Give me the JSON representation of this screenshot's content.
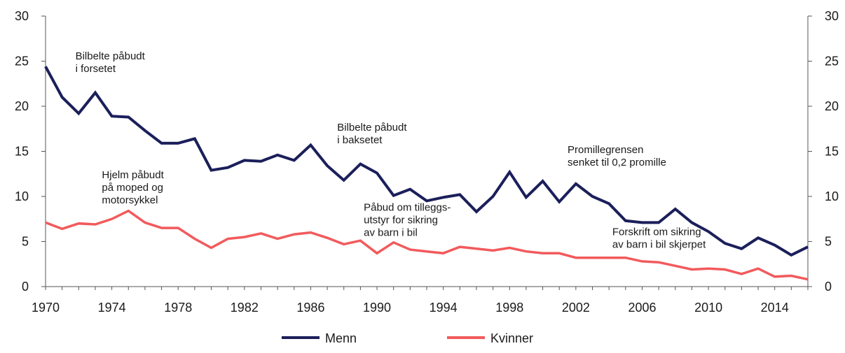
{
  "chart_data": {
    "type": "line",
    "x": [
      1970,
      1971,
      1972,
      1973,
      1974,
      1975,
      1976,
      1977,
      1978,
      1979,
      1980,
      1981,
      1982,
      1983,
      1984,
      1985,
      1986,
      1987,
      1988,
      1989,
      1990,
      1991,
      1992,
      1993,
      1994,
      1995,
      1996,
      1997,
      1998,
      1999,
      2000,
      2001,
      2002,
      2003,
      2004,
      2005,
      2006,
      2007,
      2008,
      2009,
      2010,
      2011,
      2012,
      2013,
      2014,
      2015,
      2016
    ],
    "xticks": [
      "1970",
      "1974",
      "1978",
      "1982",
      "1986",
      "1990",
      "1994",
      "1998",
      "2002",
      "2006",
      "2010",
      "2014"
    ],
    "xtick_values": [
      1970,
      1974,
      1978,
      1982,
      1986,
      1990,
      1994,
      1998,
      2002,
      2006,
      2010,
      2014
    ],
    "yticks": [
      "0",
      "5",
      "10",
      "15",
      "20",
      "25",
      "30"
    ],
    "ytick_values": [
      0,
      5,
      10,
      15,
      20,
      25,
      30
    ],
    "xlim": [
      1970,
      2016
    ],
    "ylim": [
      0,
      30
    ],
    "grid": false,
    "secondary_y_axis": true,
    "legend_position": "bottom",
    "series": [
      {
        "name": "Menn",
        "color": "#1b1f5a",
        "values": [
          24.4,
          21.0,
          19.2,
          21.5,
          18.9,
          18.8,
          17.3,
          15.9,
          15.9,
          16.4,
          12.9,
          13.2,
          14.0,
          13.9,
          14.6,
          14.0,
          15.7,
          13.4,
          11.8,
          13.6,
          12.6,
          10.1,
          10.8,
          9.5,
          9.9,
          10.2,
          8.3,
          10.0,
          12.7,
          9.9,
          11.7,
          9.4,
          11.4,
          10.0,
          9.2,
          7.3,
          7.1,
          7.1,
          8.6,
          7.1,
          6.1,
          4.8,
          4.2,
          5.4,
          4.6,
          3.5,
          4.4
        ]
      },
      {
        "name": "Kvinner",
        "color": "#f25a5c",
        "values": [
          7.1,
          6.4,
          7.0,
          6.9,
          7.5,
          8.4,
          7.1,
          6.5,
          6.5,
          5.3,
          4.3,
          5.3,
          5.5,
          5.9,
          5.3,
          5.8,
          6.0,
          5.4,
          4.7,
          5.1,
          3.7,
          4.9,
          4.1,
          3.9,
          3.7,
          4.4,
          4.2,
          4.0,
          4.3,
          3.9,
          3.7,
          3.7,
          3.2,
          3.2,
          3.2,
          3.2,
          2.8,
          2.7,
          2.3,
          1.9,
          2.0,
          1.9,
          1.4,
          2.0,
          1.1,
          1.2,
          0.8
        ]
      }
    ],
    "annotations": [
      {
        "lines": [
          "Bilbelte påbudt",
          "i forsetet"
        ],
        "x": 1971.8,
        "y": 25.2
      },
      {
        "lines": [
          "Hjelm påbudt",
          "på moped og",
          "motorsykkel"
        ],
        "x": 1973.4,
        "y": 12.0
      },
      {
        "lines": [
          "Bilbelte påbudt",
          "i baksetet"
        ],
        "x": 1987.6,
        "y": 17.3
      },
      {
        "lines": [
          "Påbud om tilleggs-",
          "utstyr for sikring",
          "av barn i bil"
        ],
        "x": 1989.2,
        "y": 8.4
      },
      {
        "lines": [
          "Promillegrensen",
          "senket til 0,2 promille"
        ],
        "x": 2001.5,
        "y": 14.8
      },
      {
        "lines": [
          "Forskrift om sikring",
          "av barn i bil skjerpet"
        ],
        "x": 2004.2,
        "y": 5.7
      }
    ]
  }
}
